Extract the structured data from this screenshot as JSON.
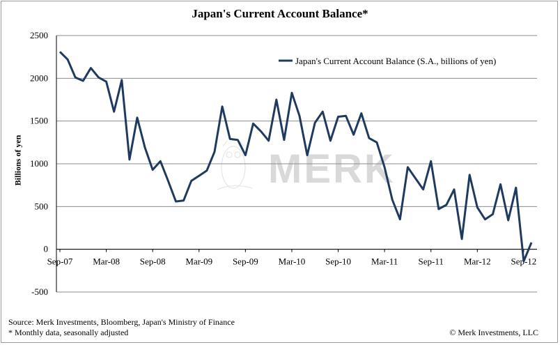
{
  "chart_data": {
    "type": "line",
    "title": "Japan's Current Account Balance*",
    "ylabel": "Billions of yen",
    "xlabel": "",
    "ylim": [
      -500,
      2500
    ],
    "yticks": [
      2500,
      2000,
      1500,
      1000,
      500,
      0,
      -500
    ],
    "yticks_labels": [
      "2500",
      "2000",
      "1500",
      "1000",
      "500",
      "0",
      "-500"
    ],
    "xtick_labels": [
      "Sep-07",
      "Mar-08",
      "Sep-08",
      "Mar-09",
      "Sep-09",
      "Mar-10",
      "Sep-10",
      "Mar-11",
      "Sep-11",
      "Mar-12",
      "Sep-12"
    ],
    "grid": "horizontal",
    "legend_position": "top-right",
    "series": [
      {
        "name": "Japan's Current Account Balance (S.A., billions of yen)",
        "color": "#1f3a5f",
        "x_start": "Sep-07",
        "frequency": "monthly",
        "values": [
          2310,
          2220,
          2010,
          1970,
          2120,
          2010,
          1960,
          1610,
          1980,
          1050,
          1540,
          1190,
          930,
          1030,
          800,
          560,
          570,
          800,
          860,
          920,
          1140,
          1670,
          1290,
          1280,
          1100,
          1470,
          1380,
          1270,
          1750,
          1280,
          1830,
          1560,
          1100,
          1480,
          1610,
          1270,
          1550,
          1560,
          1340,
          1590,
          1300,
          1250,
          960,
          580,
          350,
          960,
          830,
          700,
          1030,
          470,
          520,
          700,
          120,
          870,
          490,
          350,
          410,
          760,
          340,
          720,
          -140,
          80
        ]
      }
    ]
  },
  "footer": {
    "source": "Source: Merk Investments, Bloomberg, Japan's Ministry of Finance",
    "note": "* Monthly data, seasonally adjusted",
    "copyright": "© Merk Investments, LLC"
  },
  "watermark": {
    "text": "MERK",
    "color": "#d9d9d9"
  },
  "colors": {
    "gridline": "#8c8c8c",
    "line": "#1f3a5f"
  }
}
